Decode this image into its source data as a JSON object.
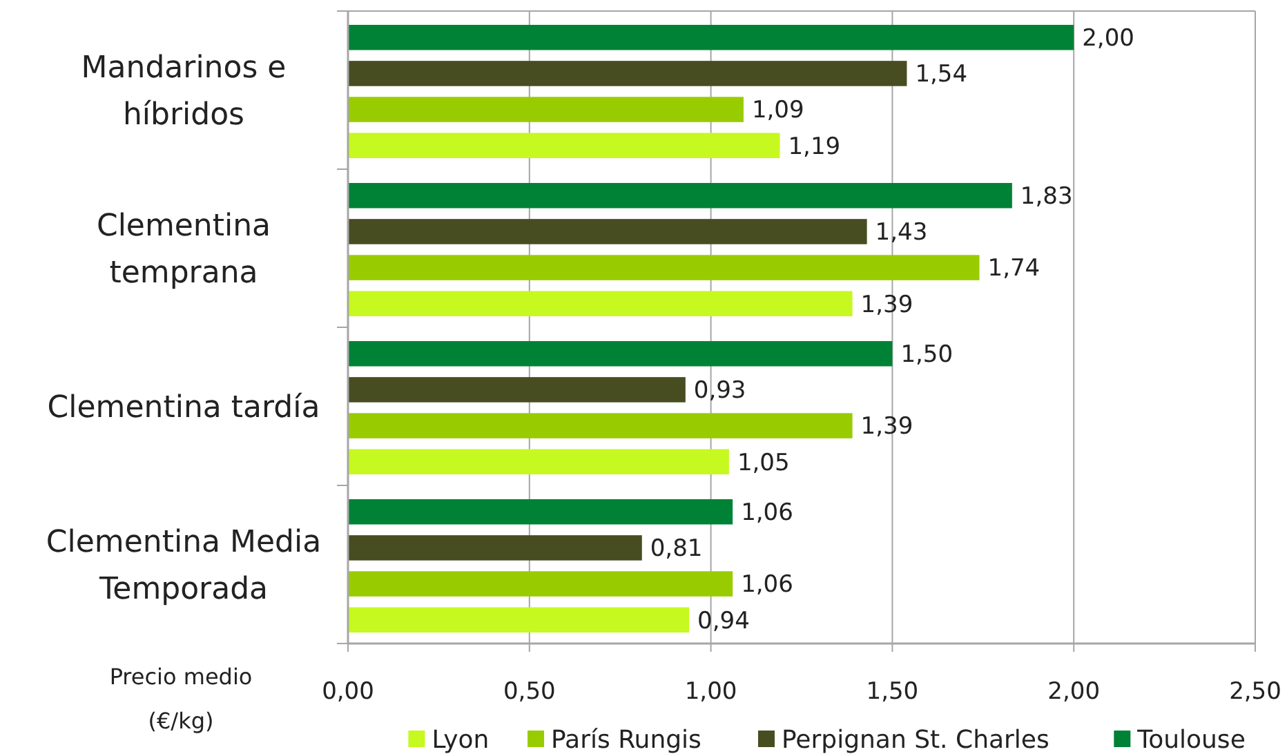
{
  "chart_data": {
    "type": "bar",
    "orientation": "horizontal",
    "categories": [
      "Mandarinos e híbridos",
      "Clementina temprana",
      "Clementina tardía",
      "Clementina Media Temporada"
    ],
    "xlabel": "Precio medio (€/kg)",
    "series": [
      {
        "name": "Lyon",
        "color": "#c5f91f",
        "values": [
          1.19,
          1.39,
          1.05,
          0.94
        ],
        "value_labels": [
          "1,19",
          "1,39",
          "1,05",
          "0,94"
        ]
      },
      {
        "name": "París Rungis",
        "color": "#99cc00",
        "values": [
          1.09,
          1.74,
          1.39,
          1.06
        ],
        "value_labels": [
          "1,09",
          "1,74",
          "1,39",
          "1,06"
        ]
      },
      {
        "name": "Perpignan St. Charles",
        "color": "#474d21",
        "values": [
          1.54,
          1.43,
          0.93,
          0.81
        ],
        "value_labels": [
          "1,54",
          "1,43",
          "0,93",
          "0,81"
        ]
      },
      {
        "name": "Toulouse",
        "color": "#008236",
        "values": [
          2.0,
          1.83,
          1.5,
          1.06
        ],
        "value_labels": [
          "2,00",
          "1,83",
          "1,50",
          "1,06"
        ]
      }
    ],
    "xlim": [
      0,
      2.5
    ],
    "xticks": [
      {
        "value": 0,
        "label": "0,00"
      },
      {
        "value": 0.5,
        "label": "0,50"
      },
      {
        "value": 1,
        "label": "1,00"
      },
      {
        "value": 1.5,
        "label": "1,50"
      },
      {
        "value": 2,
        "label": "2,00"
      },
      {
        "value": 2.5,
        "label": "2,50"
      }
    ],
    "grid": "x",
    "legend": "bottom"
  }
}
